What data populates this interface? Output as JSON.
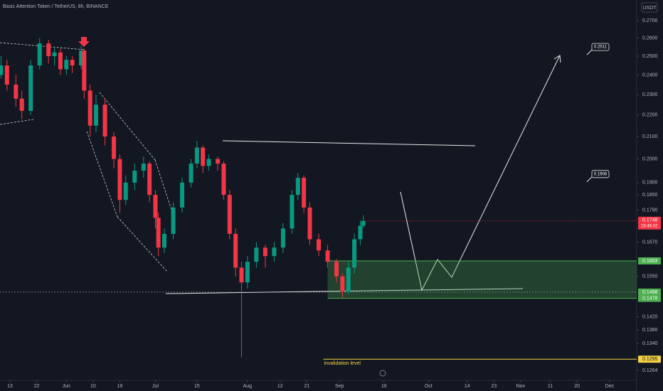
{
  "chart_data": {
    "type": "candlestick",
    "title": "Basic Attention Token / TetherUS, 8h, BINANCE",
    "currency": "USDT",
    "log_scale": true,
    "grid": false,
    "up_color": "#089981",
    "down_color": "#f23645",
    "xlim": [
      9.65,
      224.1
    ],
    "ylim": [
      0.1237,
      0.2824
    ],
    "xticks": [
      13,
      22,
      {
        "value": 32,
        "label": "Jun"
      },
      {
        "value": 41,
        "label": "10"
      },
      {
        "value": 50,
        "label": "19"
      },
      {
        "value": 62,
        "label": "Jul"
      },
      {
        "value": 76,
        "label": "15"
      },
      {
        "value": 93,
        "label": "Aug"
      },
      {
        "value": 104,
        "label": "12"
      },
      {
        "value": 113,
        "label": "21"
      },
      {
        "value": 124,
        "label": "Sep"
      },
      {
        "value": 139,
        "label": "16"
      },
      {
        "value": 154,
        "label": "Oct"
      },
      {
        "value": 167,
        "label": "14"
      },
      {
        "value": 176,
        "label": "23"
      },
      {
        "value": 185,
        "label": "Nov"
      },
      {
        "value": 195,
        "label": "11"
      },
      {
        "value": 204,
        "label": "20"
      },
      {
        "value": 215,
        "label": "Dec"
      }
    ],
    "yticks": [
      {
        "value": 0.27,
        "label": "0.2700"
      },
      {
        "value": 0.26,
        "label": "0.2600"
      },
      {
        "value": 0.25,
        "label": "0.2500"
      },
      {
        "value": 0.24,
        "label": "0.2400"
      },
      {
        "value": 0.23,
        "label": "0.2300"
      },
      {
        "value": 0.22,
        "label": "0.2200"
      },
      {
        "value": 0.21,
        "label": "0.2100"
      },
      {
        "value": 0.2,
        "label": "0.2000"
      },
      {
        "value": 0.19,
        "label": "0.1900"
      },
      {
        "value": 0.185,
        "label": "0.1850"
      },
      {
        "value": 0.179,
        "label": "0.1790"
      },
      {
        "value": 0.167,
        "label": "0.1670"
      },
      {
        "value": 0.155,
        "label": "0.1550"
      },
      {
        "value": 0.142,
        "label": "0.1420"
      },
      {
        "value": 0.138,
        "label": "0.1380"
      },
      {
        "value": 0.134,
        "label": "0.1340"
      },
      {
        "value": 0.1264,
        "label": "0.1264"
      }
    ],
    "x": [
      10,
      12,
      15,
      17,
      20,
      23,
      26,
      28,
      30,
      32,
      34,
      37,
      38,
      40,
      42,
      45,
      48,
      50,
      52,
      55,
      58,
      60,
      62,
      63,
      65,
      68,
      71,
      74,
      76,
      78,
      80,
      83,
      85,
      87,
      89,
      91,
      93,
      96,
      99,
      102,
      105,
      108,
      110,
      112,
      114,
      117,
      120,
      123,
      125,
      127,
      129,
      131,
      132
    ],
    "open": [
      0.24,
      0.245,
      0.235,
      0.228,
      0.222,
      0.245,
      0.257,
      0.25,
      0.252,
      0.243,
      0.248,
      0.245,
      0.253,
      0.232,
      0.215,
      0.225,
      0.21,
      0.2,
      0.183,
      0.19,
      0.195,
      0.198,
      0.185,
      0.176,
      0.165,
      0.17,
      0.18,
      0.19,
      0.198,
      0.205,
      0.197,
      0.2,
      0.198,
      0.185,
      0.17,
      0.158,
      0.153,
      0.16,
      0.165,
      0.162,
      0.165,
      0.172,
      0.185,
      0.192,
      0.18,
      0.168,
      0.164,
      0.16,
      0.155,
      0.15,
      0.158,
      0.168,
      0.173
    ],
    "high": [
      0.25,
      0.248,
      0.24,
      0.232,
      0.248,
      0.26,
      0.259,
      0.255,
      0.254,
      0.25,
      0.25,
      0.256,
      0.254,
      0.235,
      0.23,
      0.228,
      0.212,
      0.202,
      0.193,
      0.198,
      0.201,
      0.199,
      0.187,
      0.178,
      0.172,
      0.182,
      0.192,
      0.2,
      0.208,
      0.206,
      0.202,
      0.201,
      0.199,
      0.187,
      0.172,
      0.16,
      0.162,
      0.167,
      0.166,
      0.167,
      0.174,
      0.187,
      0.194,
      0.193,
      0.182,
      0.17,
      0.166,
      0.161,
      0.156,
      0.16,
      0.17,
      0.175,
      0.177
    ],
    "low": [
      0.238,
      0.232,
      0.224,
      0.218,
      0.22,
      0.243,
      0.246,
      0.245,
      0.24,
      0.24,
      0.241,
      0.243,
      0.228,
      0.21,
      0.212,
      0.206,
      0.196,
      0.178,
      0.181,
      0.187,
      0.192,
      0.182,
      0.172,
      0.162,
      0.163,
      0.168,
      0.178,
      0.188,
      0.196,
      0.194,
      0.195,
      0.195,
      0.183,
      0.168,
      0.155,
      0.13,
      0.151,
      0.158,
      0.158,
      0.16,
      0.163,
      0.17,
      0.183,
      0.178,
      0.166,
      0.162,
      0.158,
      0.153,
      0.148,
      0.149,
      0.156,
      0.166,
      0.172
    ],
    "close": [
      0.245,
      0.235,
      0.228,
      0.222,
      0.245,
      0.257,
      0.25,
      0.252,
      0.243,
      0.248,
      0.245,
      0.253,
      0.232,
      0.215,
      0.225,
      0.21,
      0.2,
      0.183,
      0.19,
      0.195,
      0.198,
      0.185,
      0.176,
      0.165,
      0.17,
      0.18,
      0.19,
      0.198,
      0.205,
      0.197,
      0.2,
      0.198,
      0.185,
      0.17,
      0.158,
      0.153,
      0.16,
      0.165,
      0.162,
      0.165,
      0.172,
      0.185,
      0.192,
      0.18,
      0.168,
      0.164,
      0.16,
      0.155,
      0.15,
      0.158,
      0.168,
      0.173,
      0.1748
    ],
    "last_price": {
      "value": 0.1748,
      "label": "0.1748",
      "countdown": "15:46:02"
    },
    "zone": {
      "color": "#4caf50",
      "top": {
        "value": 0.1603,
        "label": "0.1603"
      },
      "mid": {
        "value": 0.1498,
        "label": "0.1498"
      },
      "bottom": {
        "value": 0.1478,
        "label": "0.1478"
      }
    },
    "invalidation": {
      "value": 0.1295,
      "label": "0.1295",
      "text": "invalidation level",
      "color": "#f5d142"
    },
    "targets": [
      {
        "value": 0.2511,
        "label": "0.2511"
      },
      {
        "value": 0.1906,
        "label": "0.1906"
      }
    ]
  }
}
